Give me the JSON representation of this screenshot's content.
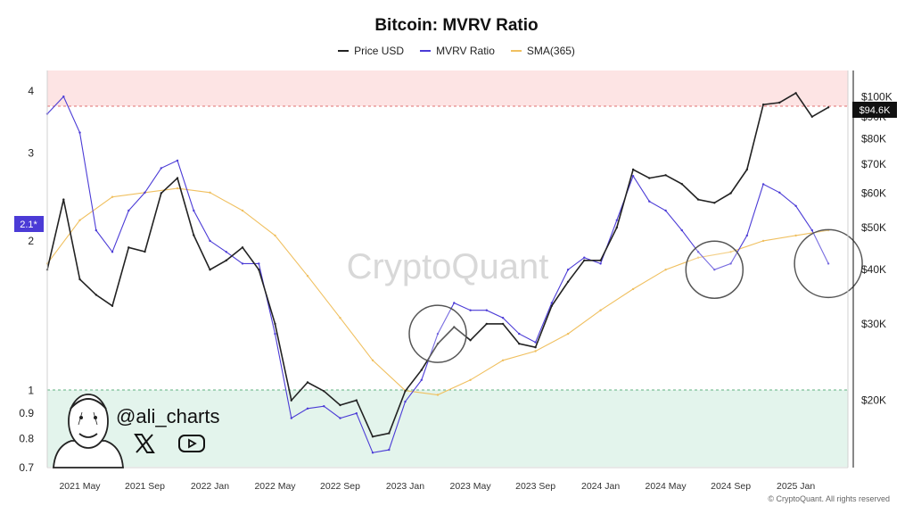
{
  "chart_data": {
    "type": "line",
    "title": "Bitcoin: MVRV Ratio",
    "legend": [
      {
        "label": "Price USD",
        "color": "#222222"
      },
      {
        "label": "MVRV Ratio",
        "color": "#4b3bd6"
      },
      {
        "label": "SMA(365)",
        "color": "#f0c060"
      }
    ],
    "x_tick_labels": [
      "2021 May",
      "2021 Sep",
      "2022 Jan",
      "2022 May",
      "2022 Sep",
      "2023 Jan",
      "2023 May",
      "2023 Sep",
      "2024 Jan",
      "2024 May",
      "2024 Sep",
      "2025 Jan"
    ],
    "left_axis": {
      "scale": "log",
      "tick_labels": [
        "4",
        "3",
        "2",
        "1",
        "0.9",
        "0.8",
        "0.7"
      ],
      "range": [
        0.7,
        4.4
      ]
    },
    "right_axis": {
      "scale": "log",
      "tick_labels": [
        "$100K",
        "$90K",
        "$80K",
        "$70K",
        "$60K",
        "$50K",
        "$40K",
        "$30K",
        "$20K"
      ],
      "range": [
        14000,
        115000
      ]
    },
    "current_mvrv_label": "2.1*",
    "current_price_label": "$94.6K",
    "zones": [
      {
        "name": "overheated",
        "from": 3.4,
        "to": 4.4,
        "color": "#fde4e4"
      },
      {
        "name": "undervalued",
        "from": 0.7,
        "to": 1.0,
        "color": "#e3f4ec"
      }
    ],
    "series": [
      {
        "name": "MVRV Ratio",
        "axis": "left",
        "color": "#4b3bd6",
        "x": [
          "2021-03",
          "2021-04",
          "2021-05",
          "2021-06",
          "2021-07",
          "2021-08",
          "2021-09",
          "2021-10",
          "2021-11",
          "2021-12",
          "2022-01",
          "2022-02",
          "2022-03",
          "2022-04",
          "2022-05",
          "2022-06",
          "2022-07",
          "2022-08",
          "2022-09",
          "2022-10",
          "2022-11",
          "2022-12",
          "2023-01",
          "2023-02",
          "2023-03",
          "2023-04",
          "2023-05",
          "2023-06",
          "2023-07",
          "2023-08",
          "2023-09",
          "2023-10",
          "2023-11",
          "2023-12",
          "2024-01",
          "2024-02",
          "2024-03",
          "2024-04",
          "2024-05",
          "2024-06",
          "2024-07",
          "2024-08",
          "2024-09",
          "2024-10",
          "2024-11",
          "2024-12",
          "2025-01",
          "2025-02",
          "2025-03"
        ],
        "values": [
          3.6,
          3.9,
          3.3,
          2.1,
          1.9,
          2.3,
          2.5,
          2.8,
          2.9,
          2.3,
          2.0,
          1.9,
          1.8,
          1.8,
          1.3,
          0.88,
          0.92,
          0.93,
          0.88,
          0.9,
          0.75,
          0.76,
          0.95,
          1.05,
          1.3,
          1.5,
          1.45,
          1.45,
          1.4,
          1.3,
          1.25,
          1.5,
          1.75,
          1.85,
          1.8,
          2.2,
          2.7,
          2.4,
          2.3,
          2.1,
          1.9,
          1.75,
          1.8,
          2.05,
          2.6,
          2.5,
          2.35,
          2.1,
          1.8
        ]
      },
      {
        "name": "Price USD",
        "axis": "right",
        "color": "#222222",
        "x": [
          "2021-03",
          "2021-04",
          "2021-05",
          "2021-06",
          "2021-07",
          "2021-08",
          "2021-09",
          "2021-10",
          "2021-11",
          "2021-12",
          "2022-01",
          "2022-02",
          "2022-03",
          "2022-04",
          "2022-05",
          "2022-06",
          "2022-07",
          "2022-08",
          "2022-09",
          "2022-10",
          "2022-11",
          "2022-12",
          "2023-01",
          "2023-02",
          "2023-03",
          "2023-04",
          "2023-05",
          "2023-06",
          "2023-07",
          "2023-08",
          "2023-09",
          "2023-10",
          "2023-11",
          "2023-12",
          "2024-01",
          "2024-02",
          "2024-03",
          "2024-04",
          "2024-05",
          "2024-06",
          "2024-07",
          "2024-08",
          "2024-09",
          "2024-10",
          "2024-11",
          "2024-12",
          "2025-01",
          "2025-02",
          "2025-03"
        ],
        "values": [
          40000,
          58000,
          38000,
          35000,
          33000,
          45000,
          44000,
          60000,
          65000,
          48000,
          40000,
          42000,
          45000,
          40000,
          30000,
          20000,
          22000,
          21000,
          19500,
          20000,
          16500,
          16800,
          21000,
          23500,
          27000,
          29500,
          27500,
          30000,
          30000,
          27000,
          26500,
          33000,
          37500,
          42000,
          42000,
          50000,
          68000,
          65000,
          66000,
          63000,
          58000,
          57000,
          60000,
          68000,
          96000,
          97000,
          102000,
          90000,
          94600
        ]
      },
      {
        "name": "SMA(365)",
        "axis": "left",
        "color": "#f0c060",
        "x": [
          "2021-03",
          "2021-05",
          "2021-07",
          "2021-09",
          "2021-11",
          "2022-01",
          "2022-03",
          "2022-05",
          "2022-07",
          "2022-09",
          "2022-11",
          "2023-01",
          "2023-03",
          "2023-05",
          "2023-07",
          "2023-09",
          "2023-11",
          "2024-01",
          "2024-03",
          "2024-05",
          "2024-07",
          "2024-09",
          "2024-11",
          "2025-01",
          "2025-03"
        ],
        "values": [
          1.8,
          2.2,
          2.45,
          2.5,
          2.55,
          2.5,
          2.3,
          2.05,
          1.7,
          1.4,
          1.15,
          1.0,
          0.98,
          1.05,
          1.15,
          1.2,
          1.3,
          1.45,
          1.6,
          1.75,
          1.85,
          1.9,
          2.0,
          2.05,
          2.1
        ]
      }
    ],
    "highlight_circles": [
      "2023-03",
      "2024-08",
      "2025-03"
    ]
  },
  "watermark": "CryptoQuant",
  "branding": {
    "handle": "@ali_charts",
    "icons": [
      "x-logo-icon",
      "youtube-icon",
      "avatar-caricature"
    ]
  },
  "copyright": "© CryptoQuant. All rights reserved"
}
